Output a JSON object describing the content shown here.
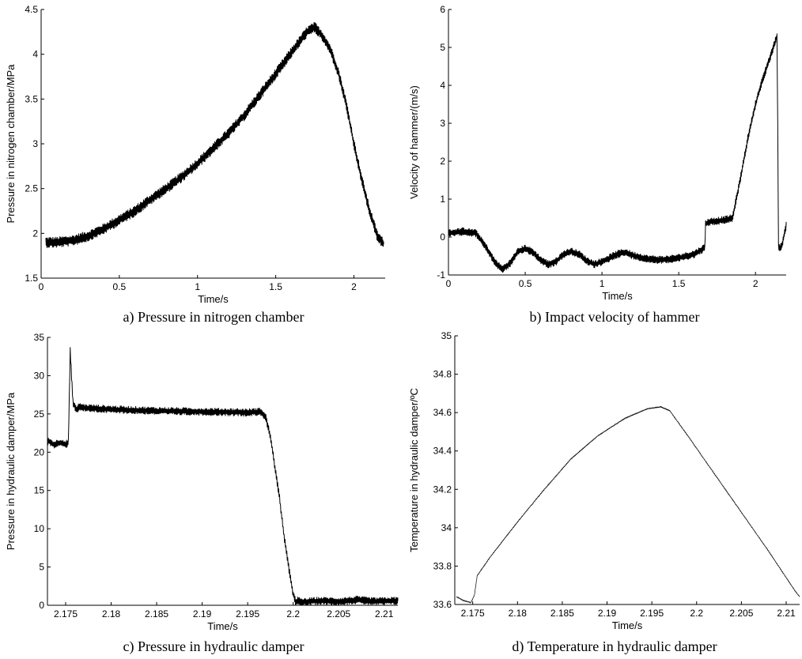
{
  "captions": {
    "a": "a) Pressure in nitrogen chamber",
    "b": "b) Impact velocity of hammer",
    "c": "c) Pressure in hydraulic damper",
    "d": "d) Temperature in hydraulic damper"
  },
  "chart_data": [
    {
      "type": "line",
      "xlabel": "Time/s",
      "ylabel": "Pressure in nitrogen chamber/MPa",
      "xlim": [
        0,
        2.2
      ],
      "ylim": [
        1.5,
        4.5
      ],
      "xticks": [
        0,
        0.5,
        1,
        1.5,
        2
      ],
      "xtick_labels": [
        "0",
        "0.5",
        "1",
        "1.5",
        "2"
      ],
      "yticks": [
        1.5,
        2,
        2.5,
        3,
        3.5,
        4,
        4.5
      ],
      "ytick_labels": [
        "1.5",
        "2",
        "2.5",
        "3",
        "3.5",
        "4",
        "4.5"
      ],
      "grid": false,
      "noise": 0.06,
      "series": [
        {
          "x": [
            0.03,
            0.1,
            0.2,
            0.3,
            0.4,
            0.5,
            0.6,
            0.7,
            0.8,
            0.9,
            1.0,
            1.1,
            1.2,
            1.3,
            1.4,
            1.5,
            1.6,
            1.7,
            1.75,
            1.8,
            1.85,
            1.9,
            1.95,
            2.0,
            2.05,
            2.1,
            2.15,
            2.19
          ],
          "y": [
            1.9,
            1.9,
            1.92,
            1.97,
            2.05,
            2.15,
            2.25,
            2.38,
            2.5,
            2.63,
            2.78,
            2.95,
            3.12,
            3.32,
            3.55,
            3.78,
            4.02,
            4.25,
            4.3,
            4.2,
            4.05,
            3.8,
            3.45,
            3.0,
            2.6,
            2.25,
            1.97,
            1.88
          ]
        }
      ]
    },
    {
      "type": "line",
      "xlabel": "Time/s",
      "ylabel": "Velocity of hammer/(m/s)",
      "xlim": [
        0,
        2.2
      ],
      "ylim": [
        -1,
        6
      ],
      "xticks": [
        0,
        0.5,
        1,
        1.5,
        2
      ],
      "xtick_labels": [
        "0",
        "0.5",
        "1",
        "1.5",
        "2"
      ],
      "yticks": [
        -1,
        0,
        1,
        2,
        3,
        4,
        5,
        6
      ],
      "ytick_labels": [
        "-1",
        "0",
        "1",
        "2",
        "3",
        "4",
        "5",
        "6"
      ],
      "grid": false,
      "noise": 0.1,
      "series": [
        {
          "x": [
            0.0,
            0.1,
            0.18,
            0.25,
            0.3,
            0.35,
            0.4,
            0.45,
            0.5,
            0.55,
            0.6,
            0.65,
            0.7,
            0.75,
            0.8,
            0.85,
            0.9,
            0.95,
            1.0,
            1.05,
            1.1,
            1.15,
            1.2,
            1.3,
            1.4,
            1.5,
            1.6,
            1.67,
            1.675,
            1.7,
            1.8,
            1.85,
            1.9,
            1.95,
            2.0,
            2.05,
            2.1,
            2.14,
            2.145,
            2.15,
            2.17,
            2.2
          ],
          "y": [
            0.1,
            0.15,
            0.1,
            -0.3,
            -0.65,
            -0.85,
            -0.7,
            -0.4,
            -0.3,
            -0.4,
            -0.6,
            -0.72,
            -0.65,
            -0.45,
            -0.38,
            -0.45,
            -0.62,
            -0.72,
            -0.65,
            -0.55,
            -0.45,
            -0.4,
            -0.48,
            -0.58,
            -0.6,
            -0.55,
            -0.45,
            -0.28,
            0.35,
            0.4,
            0.45,
            0.5,
            1.5,
            2.6,
            3.5,
            4.2,
            4.8,
            5.3,
            3.0,
            -0.3,
            -0.25,
            0.3
          ]
        }
      ]
    },
    {
      "type": "line",
      "xlabel": "Time/s",
      "ylabel": "Pressure in hydraulic damper/MPa",
      "xlim": [
        2.173,
        2.2115
      ],
      "ylim": [
        0,
        35
      ],
      "xticks": [
        2.175,
        2.18,
        2.185,
        2.19,
        2.195,
        2.2,
        2.205,
        2.21
      ],
      "xtick_labels": [
        "2.175",
        "2.18",
        "2.185",
        "2.19",
        "2.195",
        "2.2",
        "2.205",
        "2.21"
      ],
      "yticks": [
        0,
        5,
        10,
        15,
        20,
        25,
        30,
        35
      ],
      "ytick_labels": [
        "0",
        "5",
        "10",
        "15",
        "20",
        "25",
        "30",
        "35"
      ],
      "grid": false,
      "noise": 0.5,
      "series": [
        {
          "x": [
            2.173,
            2.1737,
            2.1745,
            2.175,
            2.1753,
            2.1755,
            2.1758,
            2.1762,
            2.1765,
            2.177,
            2.18,
            2.185,
            2.19,
            2.195,
            2.1965,
            2.197,
            2.1975,
            2.198,
            2.1985,
            2.199,
            2.1995,
            2.2,
            2.2003,
            2.2005,
            2.201,
            2.203,
            2.205,
            2.207,
            2.209,
            2.2115
          ],
          "y": [
            21.5,
            21.0,
            21.3,
            21.0,
            21.3,
            33.3,
            26.5,
            25.5,
            26.0,
            25.8,
            25.6,
            25.4,
            25.3,
            25.2,
            25.3,
            24.5,
            22.0,
            18.0,
            14.0,
            9.0,
            5.0,
            1.5,
            0.3,
            0.6,
            0.4,
            0.6,
            0.5,
            0.7,
            0.5,
            0.6
          ]
        }
      ]
    },
    {
      "type": "line",
      "xlabel": "Time/s",
      "ylabel": "Temperature in hydraulic damper/ºC",
      "xlim": [
        2.173,
        2.2115
      ],
      "ylim": [
        33.6,
        35
      ],
      "xticks": [
        2.175,
        2.18,
        2.185,
        2.19,
        2.195,
        2.2,
        2.205,
        2.21
      ],
      "xtick_labels": [
        "2.175",
        "2.18",
        "2.185",
        "2.19",
        "2.195",
        "2.2",
        "2.205",
        "2.21"
      ],
      "yticks": [
        33.6,
        33.8,
        34,
        34.2,
        34.4,
        34.6,
        34.8,
        35
      ],
      "ytick_labels": [
        "33.6",
        "33.8",
        "34",
        "34.2",
        "34.4",
        "34.6",
        "34.8",
        "35"
      ],
      "grid": false,
      "noise": 0.003,
      "series": [
        {
          "x": [
            2.1732,
            2.174,
            2.1748,
            2.1752,
            2.1755,
            2.177,
            2.18,
            2.183,
            2.186,
            2.189,
            2.192,
            2.1945,
            2.196,
            2.197,
            2.199,
            2.202,
            2.205,
            2.208,
            2.211,
            2.2115
          ],
          "y": [
            33.64,
            33.62,
            33.61,
            33.65,
            33.75,
            33.85,
            34.03,
            34.2,
            34.36,
            34.48,
            34.57,
            34.62,
            34.63,
            34.61,
            34.48,
            34.28,
            34.08,
            33.88,
            33.67,
            33.64
          ]
        }
      ]
    }
  ]
}
